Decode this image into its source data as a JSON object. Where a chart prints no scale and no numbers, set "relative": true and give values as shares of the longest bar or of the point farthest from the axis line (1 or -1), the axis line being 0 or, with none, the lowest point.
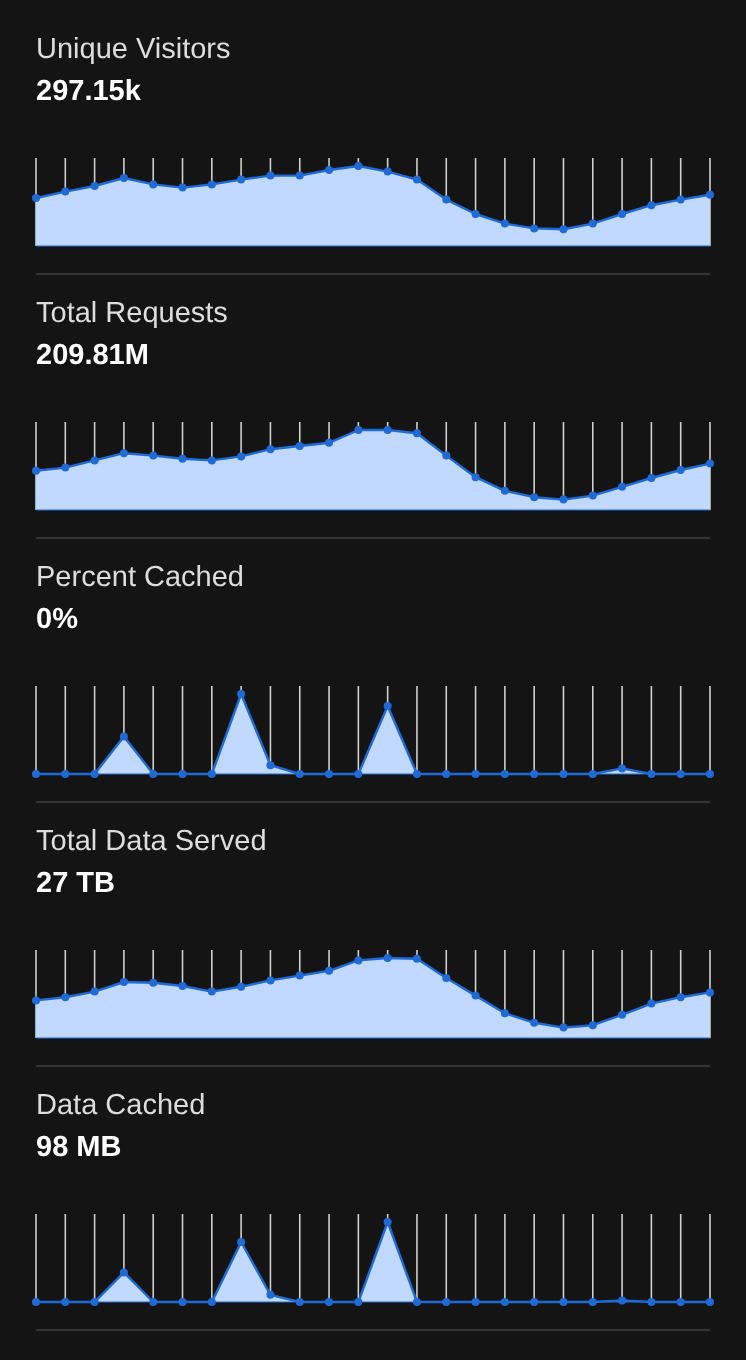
{
  "chart_data": [
    {
      "type": "area",
      "title": "Unique Visitors",
      "subtitle": "297.15k",
      "relative": true,
      "grid": "x",
      "marker": "circle",
      "line_style": "solid",
      "categories": [
        null,
        null,
        null,
        null,
        null,
        null,
        null,
        null,
        null,
        null,
        null,
        null,
        null,
        null,
        null,
        null,
        null,
        null,
        null,
        null,
        null,
        null,
        null,
        null
      ],
      "series": [
        {
          "color": "#c2d9ff",
          "values": [
            0.6,
            0.68,
            0.75,
            0.85,
            0.77,
            0.73,
            0.77,
            0.83,
            0.88,
            0.88,
            0.95,
            1,
            0.93,
            0.83,
            0.58,
            0.4,
            0.28,
            0.22,
            0.21,
            0.28,
            0.4,
            0.51,
            0.58,
            0.64
          ]
        }
      ]
    },
    {
      "type": "area",
      "title": "Total Requests",
      "subtitle": "209.81M",
      "relative": true,
      "grid": "x",
      "marker": "circle",
      "line_style": "solid",
      "categories": [
        null,
        null,
        null,
        null,
        null,
        null,
        null,
        null,
        null,
        null,
        null,
        null,
        null,
        null,
        null,
        null,
        null,
        null,
        null,
        null,
        null,
        null,
        null,
        null
      ],
      "series": [
        {
          "color": "#c2d9ff",
          "values": [
            0.49,
            0.53,
            0.62,
            0.71,
            0.68,
            0.64,
            0.62,
            0.67,
            0.76,
            0.8,
            0.84,
            1,
            1,
            0.96,
            0.68,
            0.41,
            0.24,
            0.16,
            0.13,
            0.18,
            0.29,
            0.4,
            0.5,
            0.58
          ]
        }
      ]
    },
    {
      "type": "area",
      "title": "Percent Cached",
      "subtitle": "0%",
      "relative": true,
      "grid": "x",
      "marker": "circle",
      "line_style": "solid",
      "categories": [
        null,
        null,
        null,
        null,
        null,
        null,
        null,
        null,
        null,
        null,
        null,
        null,
        null,
        null,
        null,
        null,
        null,
        null,
        null,
        null,
        null,
        null,
        null,
        null
      ],
      "series": [
        {
          "color": "#c2d9ff",
          "values": [
            0,
            0,
            0,
            0.47,
            0,
            0,
            0,
            1,
            0.11,
            0,
            0,
            0,
            0.85,
            0,
            0,
            0,
            0,
            0,
            0,
            0,
            0.07,
            0,
            0,
            0
          ]
        }
      ]
    },
    {
      "type": "area",
      "title": "Total Data Served",
      "subtitle": "27 TB",
      "relative": true,
      "grid": "x",
      "marker": "circle",
      "line_style": "solid",
      "categories": [
        null,
        null,
        null,
        null,
        null,
        null,
        null,
        null,
        null,
        null,
        null,
        null,
        null,
        null,
        null,
        null,
        null,
        null,
        null,
        null,
        null,
        null,
        null,
        null
      ],
      "series": [
        {
          "color": "#c2d9ff",
          "values": [
            0.47,
            0.51,
            0.58,
            0.7,
            0.69,
            0.65,
            0.58,
            0.64,
            0.72,
            0.78,
            0.84,
            0.97,
            1,
            0.99,
            0.75,
            0.53,
            0.31,
            0.19,
            0.13,
            0.16,
            0.29,
            0.43,
            0.51,
            0.57
          ]
        }
      ]
    },
    {
      "type": "area",
      "title": "Data Cached",
      "subtitle": "98 MB",
      "relative": true,
      "grid": "x",
      "marker": "circle",
      "line_style": "solid",
      "categories": [
        null,
        null,
        null,
        null,
        null,
        null,
        null,
        null,
        null,
        null,
        null,
        null,
        null,
        null,
        null,
        null,
        null,
        null,
        null,
        null,
        null,
        null,
        null,
        null
      ],
      "series": [
        {
          "color": "#c2d9ff",
          "values": [
            0,
            0,
            0,
            0.37,
            0,
            0,
            0,
            0.75,
            0.09,
            0,
            0,
            0,
            1,
            0,
            0,
            0,
            0,
            0,
            0,
            0,
            0.02,
            0,
            0,
            0
          ]
        }
      ]
    }
  ]
}
